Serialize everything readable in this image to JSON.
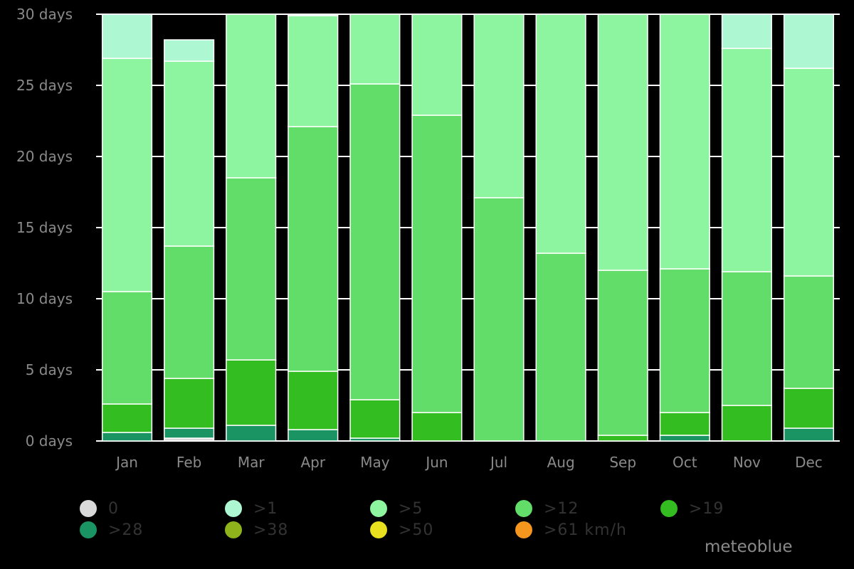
{
  "chart_data": {
    "type": "bar",
    "stacked": true,
    "title": "",
    "xlabel": "",
    "ylabel": "",
    "ylim": [
      0,
      30
    ],
    "yticks": [
      0,
      5,
      10,
      15,
      20,
      25,
      30
    ],
    "ytick_labels": [
      "0 days",
      "5 days",
      "10 days",
      "15 days",
      "20 days",
      "25 days",
      "30 days"
    ],
    "grid": "horizontal",
    "legend_position": "bottom",
    "categories": [
      "Jan",
      "Feb",
      "Mar",
      "Apr",
      "May",
      "Jun",
      "Jul",
      "Aug",
      "Sep",
      "Oct",
      "Nov",
      "Dec"
    ],
    "series": [
      {
        "name": "0",
        "color": "#d9d9d9",
        "values": [
          0.0,
          0.2,
          0.0,
          0.0,
          0.0,
          0.0,
          0.0,
          0.0,
          0.0,
          0.0,
          0.0,
          0.0
        ]
      },
      {
        "name": ">28",
        "color": "#1b9464",
        "values": [
          0.6,
          0.7,
          1.1,
          0.8,
          0.2,
          0.0,
          0.0,
          0.0,
          0.0,
          0.4,
          0.0,
          0.9
        ]
      },
      {
        "name": ">38",
        "color": "#8fb31a",
        "values": [
          0,
          0,
          0,
          0,
          0,
          0,
          0,
          0,
          0,
          0,
          0,
          0
        ]
      },
      {
        "name": ">50",
        "color": "#e8e01e",
        "values": [
          0,
          0,
          0,
          0,
          0,
          0,
          0,
          0,
          0,
          0,
          0,
          0
        ]
      },
      {
        "name": ">61 km/h",
        "color": "#f5961f",
        "values": [
          0,
          0,
          0,
          0,
          0,
          0,
          0,
          0,
          0,
          0,
          0,
          0
        ]
      },
      {
        "name": ">19",
        "color": "#33bd20",
        "values": [
          2.0,
          3.5,
          4.6,
          4.1,
          2.7,
          2.0,
          0.0,
          0.0,
          0.4,
          1.6,
          2.5,
          2.8
        ]
      },
      {
        "name": ">12",
        "color": "#63dd6a",
        "values": [
          7.9,
          9.3,
          12.8,
          17.2,
          22.2,
          20.9,
          17.1,
          13.2,
          11.6,
          10.1,
          9.4,
          7.9
        ]
      },
      {
        "name": ">5",
        "color": "#8df5a0",
        "values": [
          16.4,
          13.0,
          11.6,
          7.8,
          5.0,
          7.1,
          12.9,
          17.8,
          19.0,
          18.9,
          15.7,
          14.6
        ]
      },
      {
        "name": ">1",
        "color": "#aef7d3",
        "values": [
          3.1,
          1.5,
          0.0,
          0.1,
          0.0,
          0.0,
          0.0,
          0.0,
          0.0,
          0.0,
          2.4,
          3.8
        ]
      }
    ]
  },
  "legend": {
    "items": [
      {
        "label": "0",
        "color": "#d9d9d9"
      },
      {
        "label": ">1",
        "color": "#aef7d3"
      },
      {
        "label": ">5",
        "color": "#8df5a0"
      },
      {
        "label": ">12",
        "color": "#63dd6a"
      },
      {
        "label": ">19",
        "color": "#33bd20"
      },
      {
        "label": ">28",
        "color": "#1b9464"
      },
      {
        "label": ">38",
        "color": "#8fb31a"
      },
      {
        "label": ">50",
        "color": "#e8e01e"
      },
      {
        "label": ">61 km/h",
        "color": "#f5961f"
      }
    ]
  },
  "brand": "meteoblue",
  "colors": {
    "background": "#000000",
    "grid": "#ffffff",
    "text": "#8a8a8a",
    "legend_text": "#333333"
  }
}
